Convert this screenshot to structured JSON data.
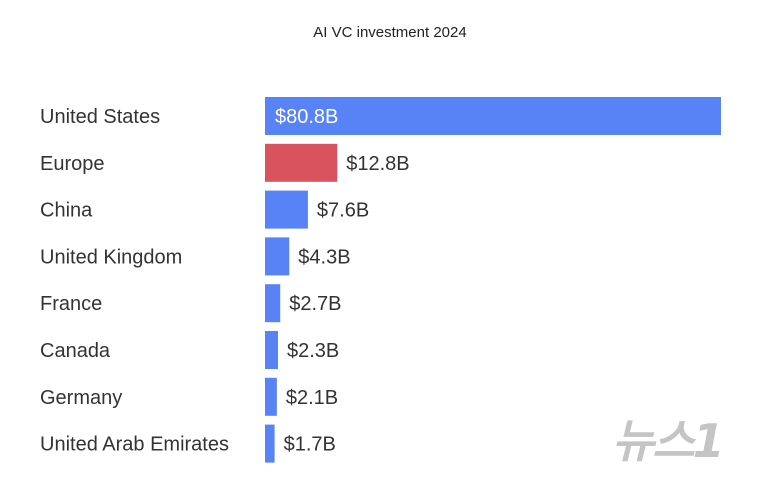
{
  "chart_data": {
    "type": "bar",
    "orientation": "horizontal",
    "title": "AI VC investment 2024",
    "xlabel": "",
    "ylabel": "",
    "grid": false,
    "categories": [
      "United States",
      "Europe",
      "China",
      "United Kingdom",
      "France",
      "Canada",
      "Germany",
      "United Arab Emirates"
    ],
    "values": [
      80.8,
      12.8,
      7.6,
      4.3,
      2.7,
      2.3,
      2.1,
      1.7
    ],
    "data_labels": [
      "$80.8B",
      "$12.8B",
      "$7.6B",
      "$4.3B",
      "$2.7B",
      "$2.3B",
      "$2.1B",
      "$1.7B"
    ],
    "unit": "billion USD",
    "xlim": [
      0,
      80.8
    ],
    "colors": [
      "#5783f7",
      "#d9535f",
      "#5783f7",
      "#5783f7",
      "#5783f7",
      "#5783f7",
      "#5783f7",
      "#5783f7"
    ],
    "label_inside_color": "#ffffff",
    "label_outside_color": "#333333"
  },
  "watermark": "뉴스1"
}
